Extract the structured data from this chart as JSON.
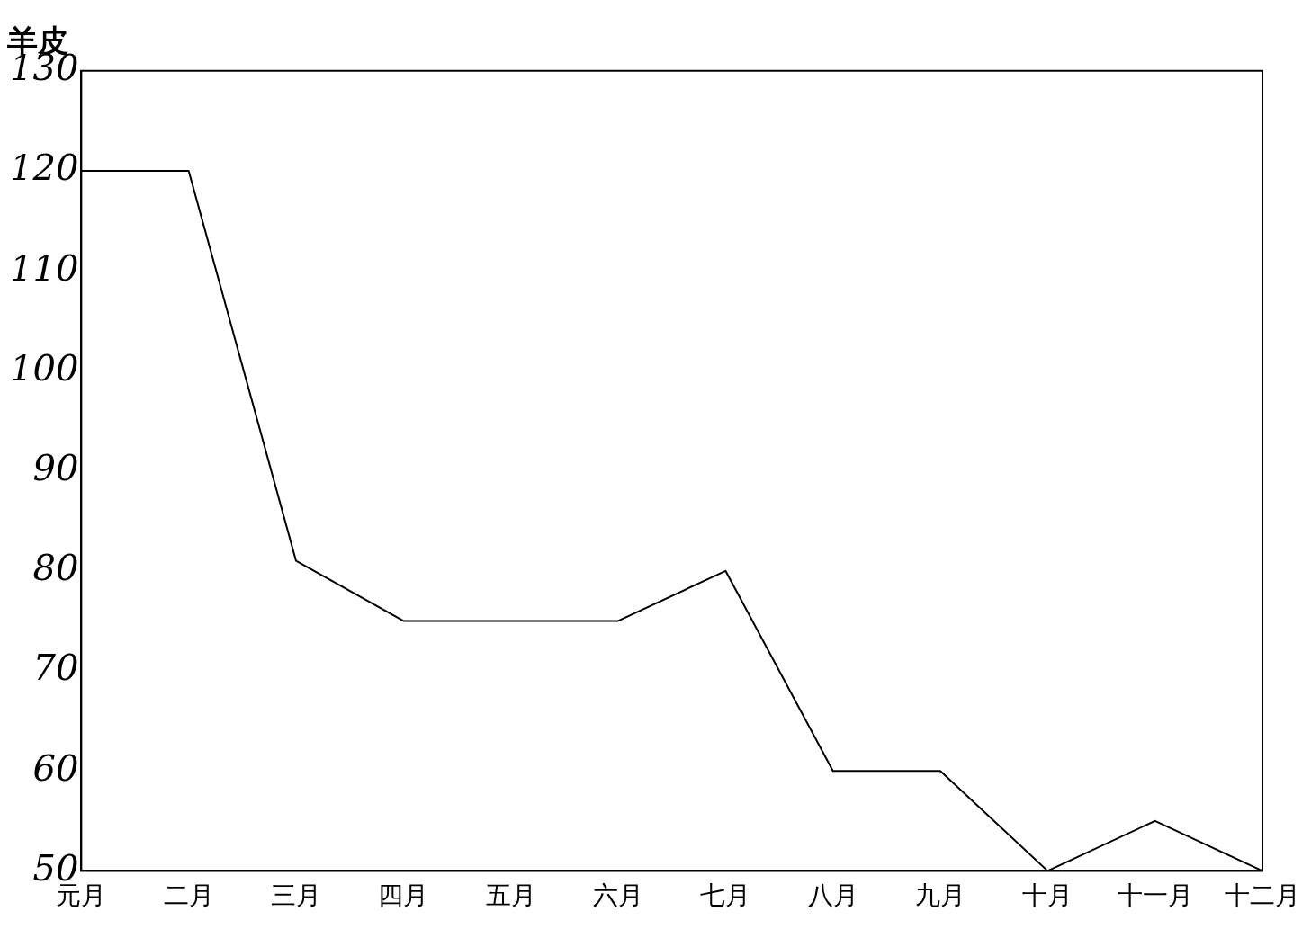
{
  "chart_data": {
    "type": "line",
    "title": "羊皮",
    "categories": [
      "元月",
      "二月",
      "三月",
      "四月",
      "五月",
      "六月",
      "七月",
      "八月",
      "九月",
      "十月",
      "十一月",
      "十二月"
    ],
    "series": [
      {
        "color": "#000000",
        "values": [
          120,
          120,
          81,
          75,
          75,
          75,
          80,
          60,
          60,
          50,
          55,
          50
        ]
      }
    ],
    "ylim": [
      50,
      130
    ],
    "yticks": [
      50,
      60,
      70,
      80,
      90,
      100,
      110,
      120,
      130
    ],
    "grid": false,
    "legend": false,
    "marker": "none",
    "line_style": "solid"
  }
}
